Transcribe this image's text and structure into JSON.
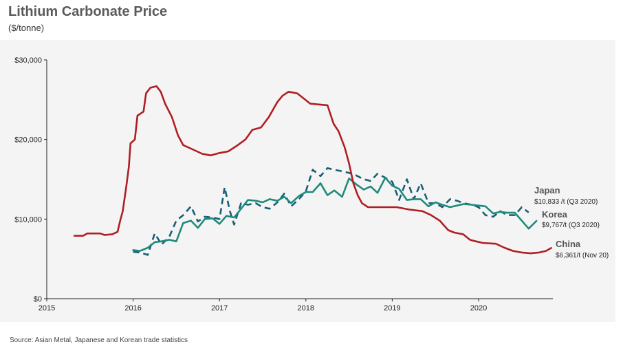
{
  "title": "Lithium Carbonate Price",
  "subtitle": "($/tonne)",
  "source": "Source: Asian Metal, Japanese and Korean trade statistics",
  "chart_data": {
    "type": "line",
    "xlim": [
      2015,
      2020.86
    ],
    "ylim": [
      0,
      30000
    ],
    "x_ticks": [
      2015,
      2016,
      2017,
      2018,
      2019,
      2020
    ],
    "x_tick_labels": [
      "2015",
      "2016",
      "2017",
      "2018",
      "2019",
      "2020"
    ],
    "y_ticks": [
      0,
      10000,
      20000,
      30000
    ],
    "y_tick_labels": [
      "$0",
      "$10,000",
      "$20,000",
      "$30,000"
    ],
    "grid": false,
    "series": [
      {
        "name": "China",
        "note": "$6,361/t (Nov 20)",
        "color": "#b01e23",
        "style": "solid",
        "points": [
          [
            2015.32,
            7900
          ],
          [
            2015.42,
            7900
          ],
          [
            2015.47,
            8200
          ],
          [
            2015.62,
            8200
          ],
          [
            2015.67,
            8000
          ],
          [
            2015.76,
            8100
          ],
          [
            2015.82,
            8400
          ],
          [
            2015.85,
            9800
          ],
          [
            2015.88,
            11000
          ],
          [
            2015.92,
            14000
          ],
          [
            2015.95,
            16500
          ],
          [
            2015.97,
            19500
          ],
          [
            2016.02,
            20000
          ],
          [
            2016.05,
            23000
          ],
          [
            2016.12,
            23500
          ],
          [
            2016.15,
            25800
          ],
          [
            2016.2,
            26500
          ],
          [
            2016.27,
            26700
          ],
          [
            2016.32,
            26000
          ],
          [
            2016.37,
            24500
          ],
          [
            2016.45,
            22800
          ],
          [
            2016.52,
            20500
          ],
          [
            2016.58,
            19300
          ],
          [
            2016.68,
            18800
          ],
          [
            2016.8,
            18200
          ],
          [
            2016.9,
            18000
          ],
          [
            2017.0,
            18300
          ],
          [
            2017.1,
            18500
          ],
          [
            2017.2,
            19200
          ],
          [
            2017.3,
            20000
          ],
          [
            2017.38,
            21200
          ],
          [
            2017.48,
            21500
          ],
          [
            2017.57,
            22800
          ],
          [
            2017.67,
            24700
          ],
          [
            2017.73,
            25500
          ],
          [
            2017.8,
            26000
          ],
          [
            2017.9,
            25800
          ],
          [
            2017.97,
            25200
          ],
          [
            2018.05,
            24500
          ],
          [
            2018.15,
            24400
          ],
          [
            2018.25,
            24300
          ],
          [
            2018.32,
            22000
          ],
          [
            2018.38,
            21000
          ],
          [
            2018.45,
            19000
          ],
          [
            2018.5,
            17000
          ],
          [
            2018.55,
            14500
          ],
          [
            2018.6,
            13000
          ],
          [
            2018.65,
            12000
          ],
          [
            2018.72,
            11500
          ],
          [
            2018.85,
            11500
          ],
          [
            2018.95,
            11500
          ],
          [
            2019.05,
            11500
          ],
          [
            2019.2,
            11200
          ],
          [
            2019.35,
            11000
          ],
          [
            2019.45,
            10500
          ],
          [
            2019.55,
            9800
          ],
          [
            2019.6,
            9200
          ],
          [
            2019.65,
            8600
          ],
          [
            2019.72,
            8300
          ],
          [
            2019.82,
            8100
          ],
          [
            2019.9,
            7400
          ],
          [
            2019.97,
            7200
          ],
          [
            2020.05,
            7000
          ],
          [
            2020.2,
            6900
          ],
          [
            2020.3,
            6400
          ],
          [
            2020.4,
            6000
          ],
          [
            2020.5,
            5800
          ],
          [
            2020.6,
            5700
          ],
          [
            2020.7,
            5800
          ],
          [
            2020.78,
            6000
          ],
          [
            2020.84,
            6361
          ]
        ]
      },
      {
        "name": "Japan",
        "note": "$10,833 /t (Q3 2020)",
        "color": "#1a5e78",
        "style": "dashed",
        "points": [
          [
            2016.0,
            5900
          ],
          [
            2016.08,
            5800
          ],
          [
            2016.17,
            5500
          ],
          [
            2016.25,
            8200
          ],
          [
            2016.33,
            6800
          ],
          [
            2016.42,
            7800
          ],
          [
            2016.5,
            9800
          ],
          [
            2016.58,
            10500
          ],
          [
            2016.67,
            11600
          ],
          [
            2016.75,
            9700
          ],
          [
            2016.83,
            10300
          ],
          [
            2016.92,
            10200
          ],
          [
            2017.0,
            10000
          ],
          [
            2017.06,
            14000
          ],
          [
            2017.12,
            11000
          ],
          [
            2017.17,
            9300
          ],
          [
            2017.25,
            12000
          ],
          [
            2017.33,
            11800
          ],
          [
            2017.42,
            12000
          ],
          [
            2017.5,
            11500
          ],
          [
            2017.58,
            11300
          ],
          [
            2017.67,
            12100
          ],
          [
            2017.75,
            13200
          ],
          [
            2017.83,
            11600
          ],
          [
            2017.92,
            12500
          ],
          [
            2018.0,
            13500
          ],
          [
            2018.08,
            16200
          ],
          [
            2018.17,
            15400
          ],
          [
            2018.25,
            16400
          ],
          [
            2018.33,
            16200
          ],
          [
            2018.42,
            16000
          ],
          [
            2018.5,
            15800
          ],
          [
            2018.58,
            15500
          ],
          [
            2018.67,
            15000
          ],
          [
            2018.75,
            14800
          ],
          [
            2018.83,
            15700
          ],
          [
            2018.92,
            15200
          ],
          [
            2019.0,
            14700
          ],
          [
            2019.08,
            12400
          ],
          [
            2019.17,
            15000
          ],
          [
            2019.25,
            12500
          ],
          [
            2019.33,
            14500
          ],
          [
            2019.42,
            12000
          ],
          [
            2019.5,
            12000
          ],
          [
            2019.58,
            11500
          ],
          [
            2019.67,
            12500
          ],
          [
            2019.75,
            12300
          ],
          [
            2019.83,
            12000
          ],
          [
            2019.92,
            11800
          ],
          [
            2020.0,
            11500
          ],
          [
            2020.08,
            10500
          ],
          [
            2020.17,
            10300
          ],
          [
            2020.25,
            11000
          ],
          [
            2020.33,
            10500
          ],
          [
            2020.42,
            10500
          ],
          [
            2020.5,
            11500
          ],
          [
            2020.58,
            10833
          ]
        ]
      },
      {
        "name": "Korea",
        "note": "$9,767/t (Q3 2020)",
        "color": "#1e8a7a",
        "style": "solid",
        "points": [
          [
            2016.0,
            6100
          ],
          [
            2016.08,
            6000
          ],
          [
            2016.17,
            6400
          ],
          [
            2016.25,
            7100
          ],
          [
            2016.33,
            7200
          ],
          [
            2016.42,
            7400
          ],
          [
            2016.5,
            7200
          ],
          [
            2016.58,
            9500
          ],
          [
            2016.67,
            9800
          ],
          [
            2016.75,
            8900
          ],
          [
            2016.83,
            10000
          ],
          [
            2016.92,
            10100
          ],
          [
            2017.0,
            9400
          ],
          [
            2017.08,
            10400
          ],
          [
            2017.17,
            10200
          ],
          [
            2017.25,
            11300
          ],
          [
            2017.33,
            12400
          ],
          [
            2017.42,
            12300
          ],
          [
            2017.5,
            12100
          ],
          [
            2017.58,
            12500
          ],
          [
            2017.67,
            12300
          ],
          [
            2017.75,
            12800
          ],
          [
            2017.83,
            12000
          ],
          [
            2017.92,
            12900
          ],
          [
            2018.0,
            13400
          ],
          [
            2018.08,
            13400
          ],
          [
            2018.17,
            14500
          ],
          [
            2018.25,
            13000
          ],
          [
            2018.33,
            13600
          ],
          [
            2018.42,
            12800
          ],
          [
            2018.5,
            15100
          ],
          [
            2018.58,
            14400
          ],
          [
            2018.67,
            13700
          ],
          [
            2018.75,
            14100
          ],
          [
            2018.83,
            13300
          ],
          [
            2018.92,
            15200
          ],
          [
            2019.0,
            14200
          ],
          [
            2019.08,
            13800
          ],
          [
            2019.17,
            12400
          ],
          [
            2019.25,
            12500
          ],
          [
            2019.33,
            12500
          ],
          [
            2019.42,
            11600
          ],
          [
            2019.5,
            12100
          ],
          [
            2019.58,
            11800
          ],
          [
            2019.67,
            11500
          ],
          [
            2019.75,
            11700
          ],
          [
            2019.83,
            11900
          ],
          [
            2019.92,
            11800
          ],
          [
            2020.0,
            11700
          ],
          [
            2020.08,
            11600
          ],
          [
            2020.17,
            10700
          ],
          [
            2020.25,
            10900
          ],
          [
            2020.33,
            10800
          ],
          [
            2020.42,
            10800
          ],
          [
            2020.5,
            9800
          ],
          [
            2020.58,
            8800
          ],
          [
            2020.67,
            9767
          ]
        ]
      }
    ]
  }
}
